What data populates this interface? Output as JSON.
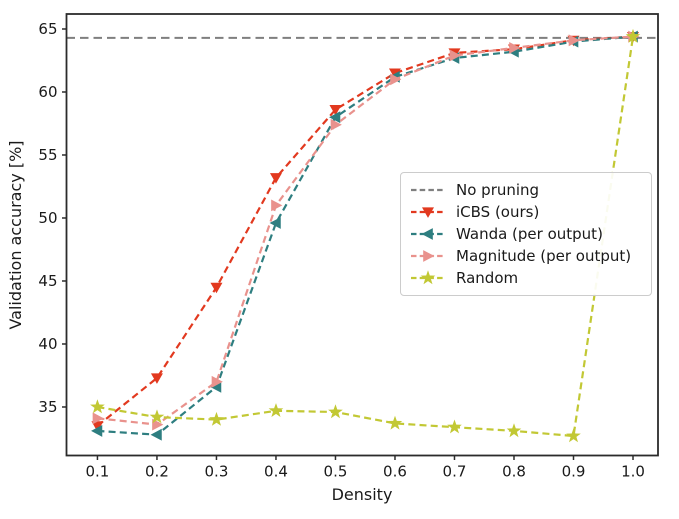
{
  "figure": {
    "background": "#ffffff",
    "text_color": "#1a1a1a",
    "frame_color": "#2b2b2b"
  },
  "chart_data": {
    "type": "line",
    "title": "",
    "xlabel": "Density",
    "ylabel": "Validation accuracy [%]",
    "x": [
      0.1,
      0.2,
      0.3,
      0.4,
      0.5,
      0.6,
      0.7,
      0.8,
      0.9,
      1.0
    ],
    "xtick_labels": [
      "0.1",
      "0.2",
      "0.3",
      "0.4",
      "0.5",
      "0.6",
      "0.7",
      "0.8",
      "0.9",
      "1.0"
    ],
    "ytick_labels": [
      "35",
      "40",
      "45",
      "50",
      "55",
      "60",
      "65"
    ],
    "yticks": [
      35,
      40,
      45,
      50,
      55,
      60,
      65
    ],
    "xlim": [
      0.048,
      1.042
    ],
    "ylim": [
      31.15,
      66.19
    ],
    "grid": false,
    "legend_position": "center right",
    "series": [
      {
        "name": "No pruning",
        "type": "hline",
        "value": 64.3,
        "color": "#7f7f7f",
        "linestyle": "dashed",
        "marker": "none"
      },
      {
        "name": "iCBS (ours)",
        "type": "line",
        "color": "#e2391f",
        "linestyle": "dashed",
        "marker": "triangle-down",
        "values": [
          33.5,
          37.3,
          44.5,
          53.2,
          58.6,
          61.5,
          63.1,
          63.4,
          64.1,
          64.4
        ]
      },
      {
        "name": "Wanda (per output)",
        "type": "line",
        "color": "#2e7e80",
        "linestyle": "dashed",
        "marker": "triangle-left",
        "values": [
          33.1,
          32.8,
          36.6,
          49.6,
          58.0,
          61.2,
          62.7,
          63.2,
          64.0,
          64.4
        ]
      },
      {
        "name": "Magnitude (per output)",
        "type": "line",
        "color": "#e9928d",
        "linestyle": "dashed",
        "marker": "triangle-right",
        "values": [
          34.1,
          33.6,
          37.0,
          51.0,
          57.4,
          61.0,
          62.9,
          63.5,
          64.1,
          64.4
        ]
      },
      {
        "name": "Random",
        "type": "line",
        "color": "#c2c834",
        "linestyle": "dashed",
        "marker": "star",
        "values": [
          35.0,
          34.2,
          34.0,
          34.7,
          34.6,
          33.7,
          33.4,
          33.1,
          32.7,
          64.4
        ]
      }
    ]
  }
}
